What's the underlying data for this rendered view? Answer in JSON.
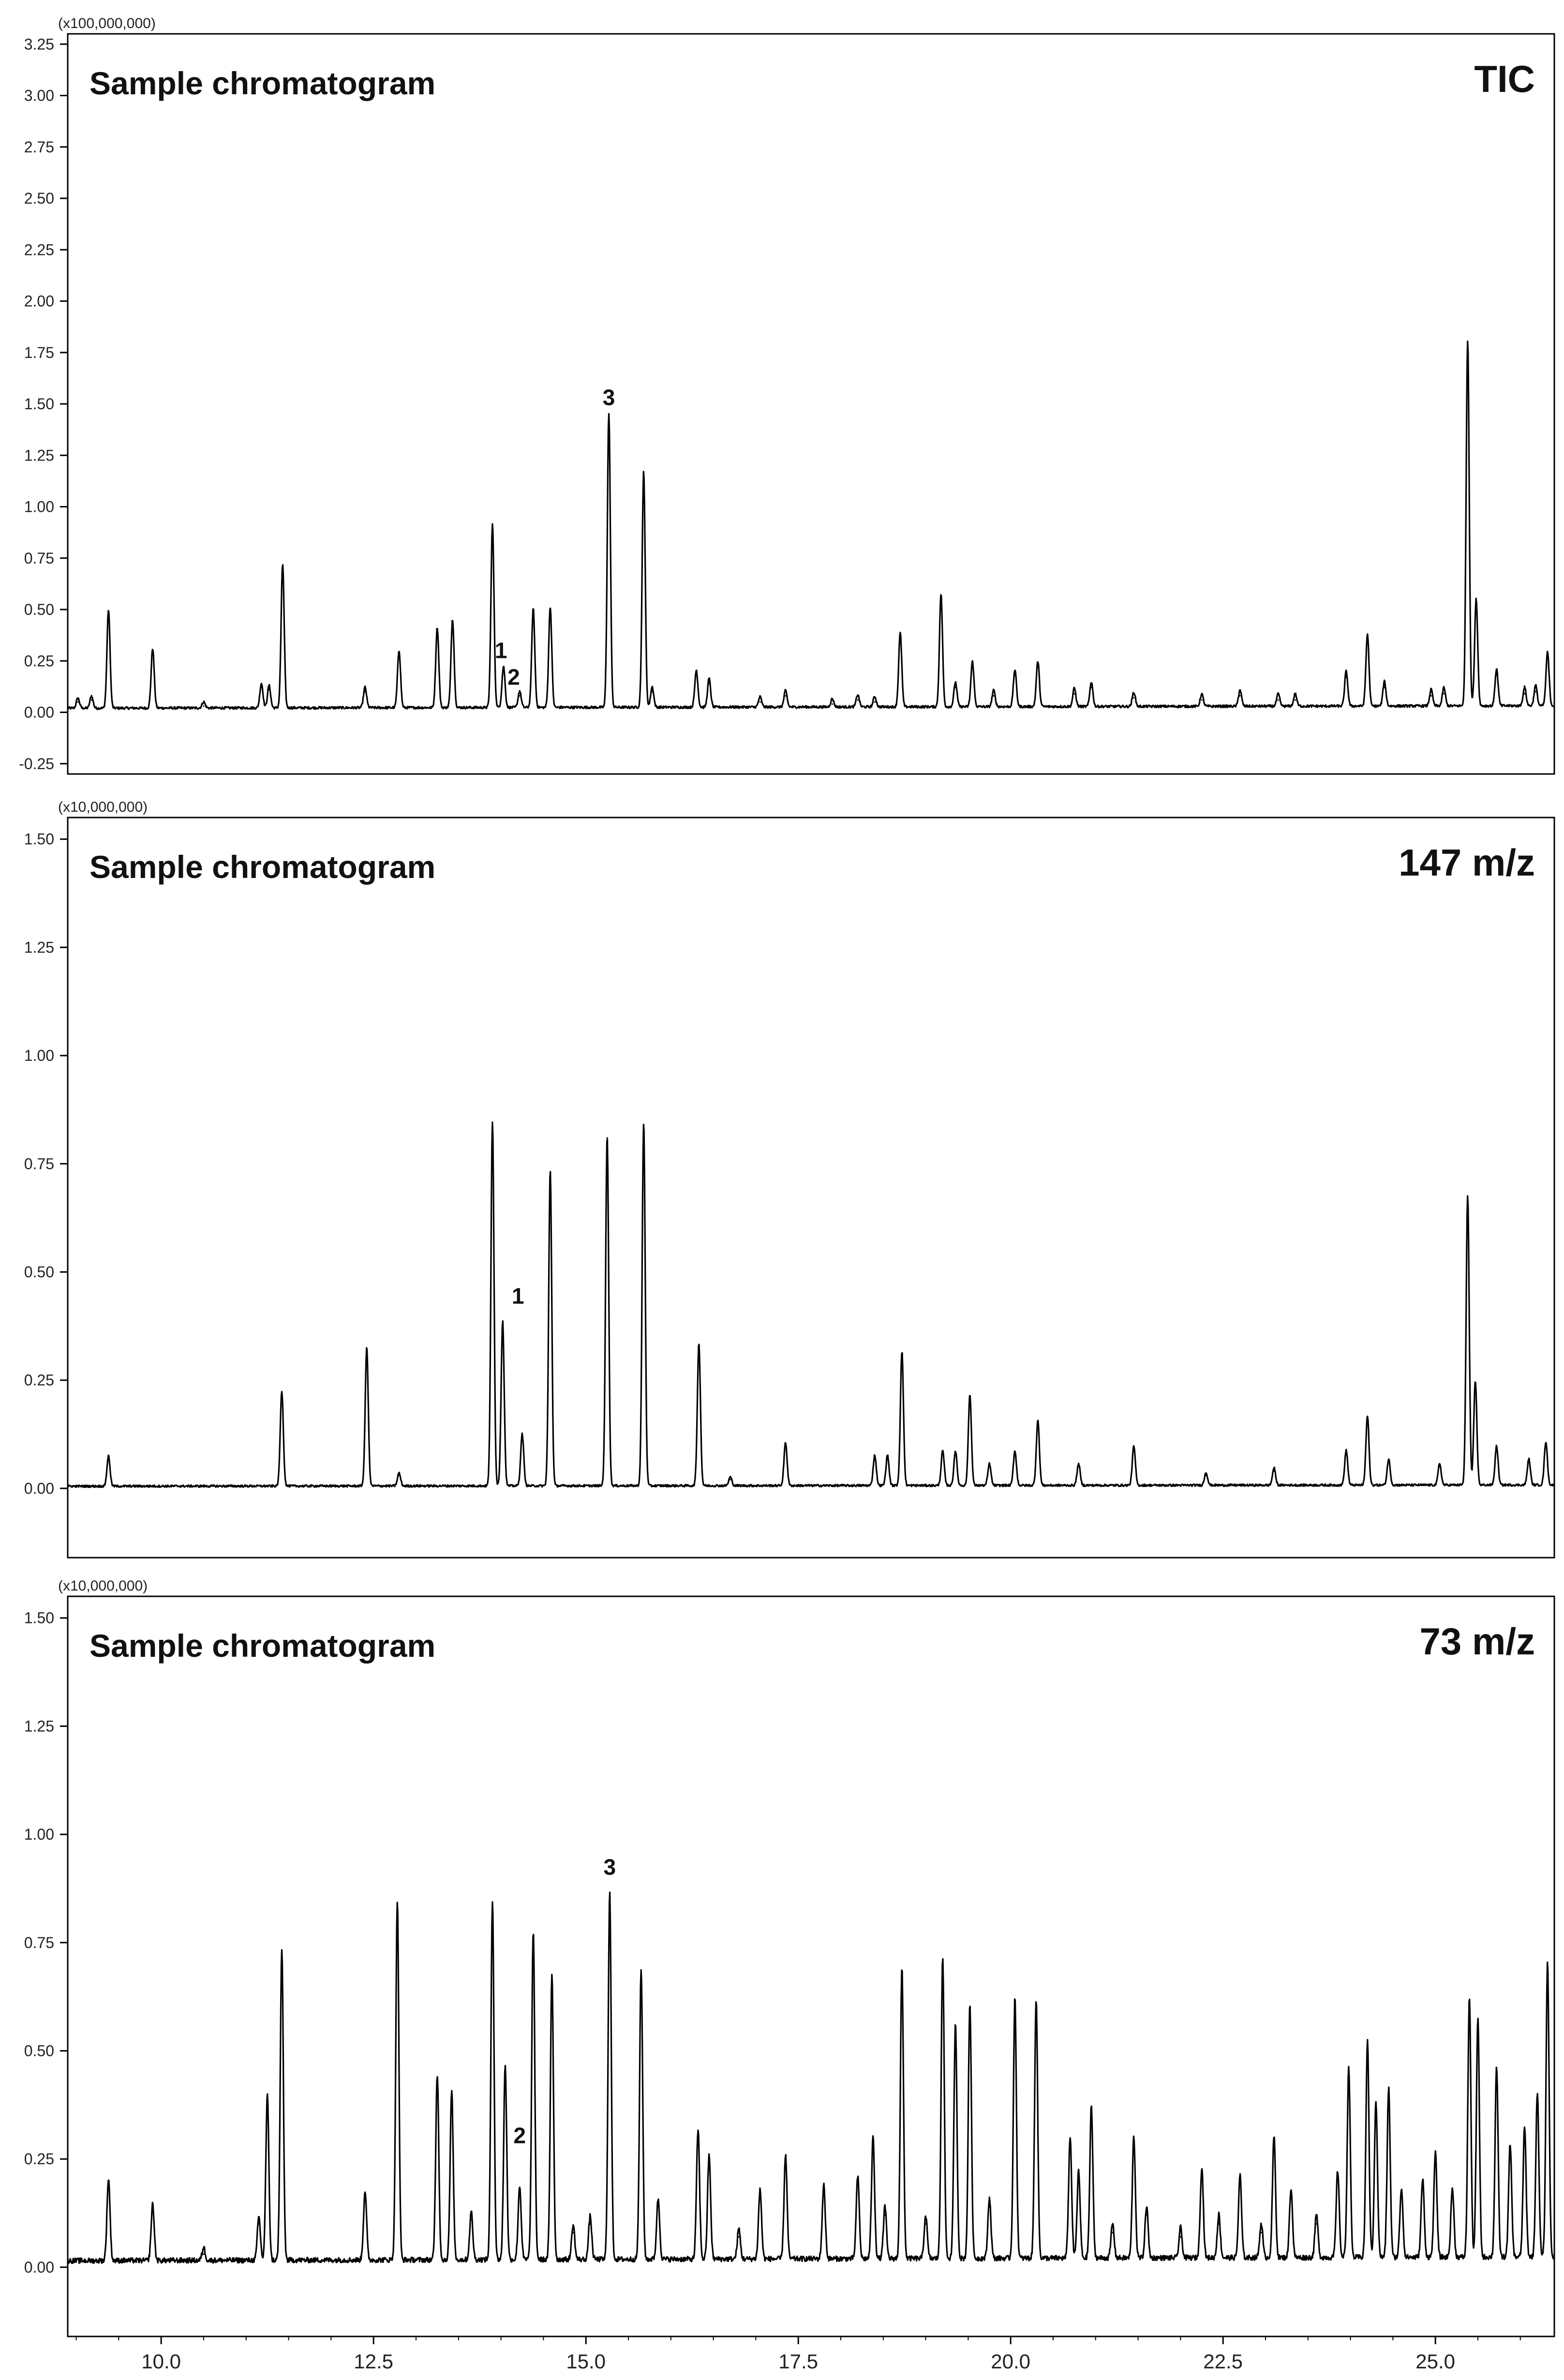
{
  "chart_data": [
    {
      "type": "line",
      "title": "Sample chromatogram",
      "label": "TIC",
      "multiplier": "(x100,000,000)",
      "ylim": [
        -0.3,
        3.3
      ],
      "yticks": [
        "3.25",
        "3.00",
        "2.75",
        "2.50",
        "2.25",
        "2.00",
        "1.75",
        "1.50",
        "1.25",
        "1.00",
        "0.75",
        "0.50",
        "0.25",
        "0.00",
        "-0.25"
      ],
      "xlim": [
        8.9,
        26.4
      ],
      "baseline": 0.02,
      "noise": 0.012,
      "peaks": [
        {
          "x": 9.02,
          "y": 0.05
        },
        {
          "x": 9.18,
          "y": 0.06
        },
        {
          "x": 9.38,
          "y": 0.48
        },
        {
          "x": 9.9,
          "y": 0.29
        },
        {
          "x": 10.5,
          "y": 0.03
        },
        {
          "x": 11.18,
          "y": 0.12
        },
        {
          "x": 11.27,
          "y": 0.11
        },
        {
          "x": 11.43,
          "y": 0.7
        },
        {
          "x": 12.4,
          "y": 0.1
        },
        {
          "x": 12.8,
          "y": 0.28
        },
        {
          "x": 13.25,
          "y": 0.39
        },
        {
          "x": 13.43,
          "y": 0.43
        },
        {
          "x": 13.9,
          "y": 0.89
        },
        {
          "x": 14.03,
          "y": 0.2
        },
        {
          "x": 14.22,
          "y": 0.08
        },
        {
          "x": 14.38,
          "y": 0.48
        },
        {
          "x": 14.58,
          "y": 0.49
        },
        {
          "x": 15.27,
          "y": 1.43
        },
        {
          "x": 15.68,
          "y": 1.15
        },
        {
          "x": 15.78,
          "y": 0.1
        },
        {
          "x": 16.3,
          "y": 0.18
        },
        {
          "x": 16.45,
          "y": 0.14
        },
        {
          "x": 17.05,
          "y": 0.05
        },
        {
          "x": 17.35,
          "y": 0.08
        },
        {
          "x": 17.9,
          "y": 0.04
        },
        {
          "x": 18.2,
          "y": 0.06
        },
        {
          "x": 18.4,
          "y": 0.05
        },
        {
          "x": 18.7,
          "y": 0.36
        },
        {
          "x": 19.18,
          "y": 0.55
        },
        {
          "x": 19.35,
          "y": 0.12
        },
        {
          "x": 19.55,
          "y": 0.22
        },
        {
          "x": 19.8,
          "y": 0.08
        },
        {
          "x": 20.05,
          "y": 0.18
        },
        {
          "x": 20.32,
          "y": 0.22
        },
        {
          "x": 20.75,
          "y": 0.09
        },
        {
          "x": 20.95,
          "y": 0.12
        },
        {
          "x": 21.45,
          "y": 0.07
        },
        {
          "x": 22.25,
          "y": 0.06
        },
        {
          "x": 22.7,
          "y": 0.08
        },
        {
          "x": 23.15,
          "y": 0.06
        },
        {
          "x": 23.35,
          "y": 0.06
        },
        {
          "x": 23.95,
          "y": 0.17
        },
        {
          "x": 24.2,
          "y": 0.35
        },
        {
          "x": 24.4,
          "y": 0.12
        },
        {
          "x": 24.95,
          "y": 0.08
        },
        {
          "x": 25.1,
          "y": 0.09
        },
        {
          "x": 25.38,
          "y": 1.78
        },
        {
          "x": 25.48,
          "y": 0.52
        },
        {
          "x": 25.72,
          "y": 0.18
        },
        {
          "x": 26.05,
          "y": 0.09
        },
        {
          "x": 26.18,
          "y": 0.1
        },
        {
          "x": 26.32,
          "y": 0.26
        }
      ],
      "annotations": [
        {
          "text": "1",
          "x": 14.0,
          "y": 0.25
        },
        {
          "text": "2",
          "x": 14.15,
          "y": 0.12
        },
        {
          "text": "3",
          "x": 15.27,
          "y": 1.48
        }
      ]
    },
    {
      "type": "line",
      "title": "Sample chromatogram",
      "label": "147 m/z",
      "multiplier": "(x10,000,000)",
      "ylim": [
        -0.16,
        1.55
      ],
      "yticks": [
        "1.50",
        "1.25",
        "1.00",
        "0.75",
        "0.50",
        "0.25",
        "0.00"
      ],
      "xlim": [
        8.9,
        26.4
      ],
      "baseline": 0.005,
      "noise": 0.005,
      "peaks": [
        {
          "x": 9.38,
          "y": 0.07
        },
        {
          "x": 11.42,
          "y": 0.22
        },
        {
          "x": 12.42,
          "y": 0.32
        },
        {
          "x": 12.8,
          "y": 0.03
        },
        {
          "x": 13.9,
          "y": 0.84
        },
        {
          "x": 14.02,
          "y": 0.38
        },
        {
          "x": 14.25,
          "y": 0.12
        },
        {
          "x": 14.58,
          "y": 0.73
        },
        {
          "x": 15.25,
          "y": 0.81
        },
        {
          "x": 15.68,
          "y": 0.84
        },
        {
          "x": 16.33,
          "y": 0.33
        },
        {
          "x": 16.7,
          "y": 0.02
        },
        {
          "x": 17.35,
          "y": 0.1
        },
        {
          "x": 18.4,
          "y": 0.07
        },
        {
          "x": 18.55,
          "y": 0.07
        },
        {
          "x": 18.72,
          "y": 0.31
        },
        {
          "x": 19.2,
          "y": 0.08
        },
        {
          "x": 19.35,
          "y": 0.08
        },
        {
          "x": 19.52,
          "y": 0.21
        },
        {
          "x": 19.75,
          "y": 0.05
        },
        {
          "x": 20.05,
          "y": 0.08
        },
        {
          "x": 20.32,
          "y": 0.15
        },
        {
          "x": 20.8,
          "y": 0.05
        },
        {
          "x": 21.45,
          "y": 0.09
        },
        {
          "x": 22.3,
          "y": 0.03
        },
        {
          "x": 23.1,
          "y": 0.04
        },
        {
          "x": 23.95,
          "y": 0.08
        },
        {
          "x": 24.2,
          "y": 0.16
        },
        {
          "x": 24.45,
          "y": 0.06
        },
        {
          "x": 25.05,
          "y": 0.05
        },
        {
          "x": 25.38,
          "y": 0.67
        },
        {
          "x": 25.47,
          "y": 0.24
        },
        {
          "x": 25.72,
          "y": 0.09
        },
        {
          "x": 26.1,
          "y": 0.06
        },
        {
          "x": 26.3,
          "y": 0.1
        }
      ],
      "annotations": [
        {
          "text": "1",
          "x": 14.2,
          "y": 0.42
        }
      ]
    },
    {
      "type": "line",
      "title": "Sample chromatogram",
      "label": "73 m/z",
      "multiplier": "(x10,000,000)",
      "ylim": [
        -0.16,
        1.55
      ],
      "yticks": [
        "1.50",
        "1.25",
        "1.00",
        "0.75",
        "0.50",
        "0.25",
        "0.00"
      ],
      "xlim": [
        8.9,
        26.4
      ],
      "xticks": [
        "10.0",
        "12.5",
        "15.0",
        "17.5",
        "20.0",
        "22.5",
        "25.0"
      ],
      "baseline": 0.015,
      "noise": 0.012,
      "peaks": [
        {
          "x": 9.38,
          "y": 0.19
        },
        {
          "x": 9.9,
          "y": 0.13
        },
        {
          "x": 10.5,
          "y": 0.03
        },
        {
          "x": 11.15,
          "y": 0.1
        },
        {
          "x": 11.25,
          "y": 0.38
        },
        {
          "x": 11.42,
          "y": 0.72
        },
        {
          "x": 12.4,
          "y": 0.16
        },
        {
          "x": 12.78,
          "y": 0.83
        },
        {
          "x": 13.25,
          "y": 0.43
        },
        {
          "x": 13.42,
          "y": 0.39
        },
        {
          "x": 13.65,
          "y": 0.11
        },
        {
          "x": 13.9,
          "y": 0.83
        },
        {
          "x": 14.05,
          "y": 0.45
        },
        {
          "x": 14.22,
          "y": 0.17
        },
        {
          "x": 14.38,
          "y": 0.76
        },
        {
          "x": 14.6,
          "y": 0.66
        },
        {
          "x": 14.85,
          "y": 0.08
        },
        {
          "x": 15.05,
          "y": 0.1
        },
        {
          "x": 15.28,
          "y": 0.85
        },
        {
          "x": 15.65,
          "y": 0.67
        },
        {
          "x": 15.85,
          "y": 0.14
        },
        {
          "x": 16.32,
          "y": 0.3
        },
        {
          "x": 16.45,
          "y": 0.24
        },
        {
          "x": 16.8,
          "y": 0.07
        },
        {
          "x": 17.05,
          "y": 0.16
        },
        {
          "x": 17.35,
          "y": 0.24
        },
        {
          "x": 17.8,
          "y": 0.17
        },
        {
          "x": 18.2,
          "y": 0.19
        },
        {
          "x": 18.38,
          "y": 0.28
        },
        {
          "x": 18.52,
          "y": 0.12
        },
        {
          "x": 18.72,
          "y": 0.67
        },
        {
          "x": 19.0,
          "y": 0.1
        },
        {
          "x": 19.2,
          "y": 0.7
        },
        {
          "x": 19.35,
          "y": 0.54
        },
        {
          "x": 19.52,
          "y": 0.59
        },
        {
          "x": 19.75,
          "y": 0.14
        },
        {
          "x": 20.05,
          "y": 0.6
        },
        {
          "x": 20.3,
          "y": 0.6
        },
        {
          "x": 20.7,
          "y": 0.28
        },
        {
          "x": 20.8,
          "y": 0.2
        },
        {
          "x": 20.95,
          "y": 0.35
        },
        {
          "x": 21.2,
          "y": 0.08
        },
        {
          "x": 21.45,
          "y": 0.28
        },
        {
          "x": 21.6,
          "y": 0.12
        },
        {
          "x": 22.0,
          "y": 0.07
        },
        {
          "x": 22.25,
          "y": 0.21
        },
        {
          "x": 22.45,
          "y": 0.1
        },
        {
          "x": 22.7,
          "y": 0.19
        },
        {
          "x": 22.95,
          "y": 0.08
        },
        {
          "x": 23.1,
          "y": 0.28
        },
        {
          "x": 23.3,
          "y": 0.16
        },
        {
          "x": 23.6,
          "y": 0.1
        },
        {
          "x": 23.85,
          "y": 0.2
        },
        {
          "x": 23.98,
          "y": 0.44
        },
        {
          "x": 24.2,
          "y": 0.5
        },
        {
          "x": 24.3,
          "y": 0.36
        },
        {
          "x": 24.45,
          "y": 0.39
        },
        {
          "x": 24.6,
          "y": 0.16
        },
        {
          "x": 24.85,
          "y": 0.18
        },
        {
          "x": 25.0,
          "y": 0.24
        },
        {
          "x": 25.2,
          "y": 0.16
        },
        {
          "x": 25.4,
          "y": 0.6
        },
        {
          "x": 25.5,
          "y": 0.55
        },
        {
          "x": 25.72,
          "y": 0.44
        },
        {
          "x": 25.88,
          "y": 0.26
        },
        {
          "x": 26.05,
          "y": 0.3
        },
        {
          "x": 26.2,
          "y": 0.38
        },
        {
          "x": 26.32,
          "y": 0.68
        }
      ],
      "annotations": [
        {
          "text": "2",
          "x": 14.22,
          "y": 0.28
        },
        {
          "text": "3",
          "x": 15.28,
          "y": 0.9
        }
      ]
    }
  ],
  "style": {
    "line_color": "#000000",
    "frame_color": "#000000",
    "background": "#ffffff"
  }
}
